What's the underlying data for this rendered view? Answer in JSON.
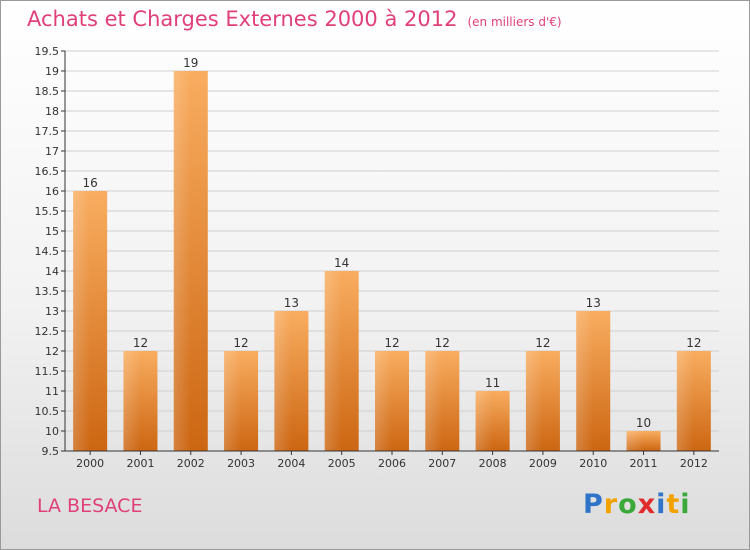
{
  "header": {
    "title": "Achats et Charges Externes 2000 à 2012",
    "unit": "(en milliers d'€)"
  },
  "commune": "LA BESACE",
  "logo": {
    "text": "Proxiti",
    "letters": [
      "P",
      "r",
      "o",
      "x",
      "i",
      "t",
      "i"
    ]
  },
  "colors": {
    "title": "#e0407a",
    "bar_light": "#f7a858",
    "bar_dark": "#cf6a14",
    "grid": "#d0d0d0",
    "axis": "#333333"
  },
  "chart_data": {
    "type": "bar",
    "categories": [
      "2000",
      "2001",
      "2002",
      "2003",
      "2004",
      "2005",
      "2006",
      "2007",
      "2008",
      "2009",
      "2010",
      "2011",
      "2012"
    ],
    "values": [
      16,
      12,
      19,
      12,
      13,
      14,
      12,
      12,
      11,
      12,
      13,
      10,
      12
    ],
    "data_labels": [
      "16",
      "12",
      "19",
      "12",
      "13",
      "14",
      "12",
      "12",
      "11",
      "12",
      "13",
      "10",
      "12"
    ],
    "title": "Achats et Charges Externes 2000 à 2012",
    "ylim": [
      9.5,
      19.5
    ],
    "yticks": [
      9.5,
      10,
      10.5,
      11,
      11.5,
      12,
      12.5,
      13,
      13.5,
      14,
      14.5,
      15,
      15.5,
      16,
      16.5,
      17,
      17.5,
      18,
      18.5,
      19,
      19.5
    ],
    "ytick_labels": [
      "9.5",
      "10",
      "10.5",
      "11",
      "11.5",
      "12",
      "12.5",
      "13",
      "13.5",
      "14",
      "14.5",
      "15",
      "15.5",
      "16",
      "16.5",
      "17",
      "17.5",
      "18",
      "18.5",
      "19",
      "19.5"
    ],
    "grid": true
  }
}
